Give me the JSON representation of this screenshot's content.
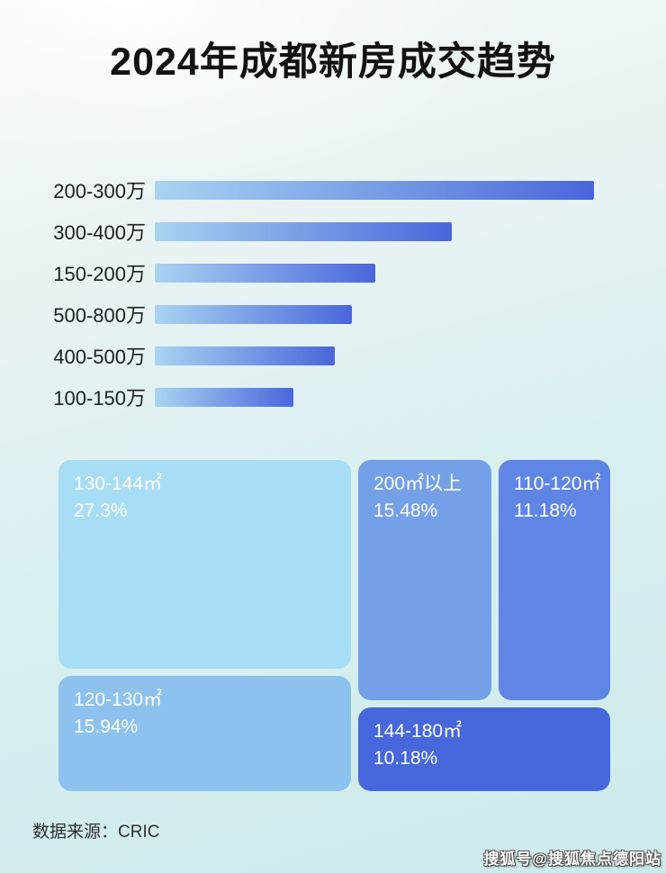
{
  "page": {
    "title": "2024年成都新房成交趋势",
    "source_note": "数据来源：CRIC",
    "watermark": "搜狐号@搜狐焦点德阳站"
  },
  "colors": {
    "bar_gradient_start": "#a9d4f1",
    "bar_gradient_end": "#4a66db",
    "background_top": "#f5f8f8",
    "background_bottom": "#cdeaea",
    "label_text": "#1f1f1f",
    "tile_text": "#ffffff"
  },
  "chart_data": [
    {
      "type": "bar",
      "orientation": "horizontal",
      "title": "",
      "categories": [
        "200-300万",
        "300-400万",
        "150-200万",
        "500-800万",
        "400-500万",
        "100-150万"
      ],
      "values": [
        100,
        67.6,
        50.3,
        44.9,
        41.0,
        31.5
      ],
      "value_note": "relative bar lengths, no numeric data labels shown",
      "grid": false,
      "legend": false
    },
    {
      "type": "treemap",
      "title": "",
      "tiles": [
        {
          "label": "130-144㎡",
          "percent": "27.3%",
          "value": 27.3,
          "color": "#a8ddf6"
        },
        {
          "label": "200㎡以上",
          "percent": "15.48%",
          "value": 15.48,
          "color": "#74a0e8"
        },
        {
          "label": "110-120㎡",
          "percent": "11.18%",
          "value": 11.18,
          "color": "#5f86e4"
        },
        {
          "label": "120-130㎡",
          "percent": "15.94%",
          "value": 15.94,
          "color": "#8dc2ee"
        },
        {
          "label": "144-180㎡",
          "percent": "10.18%",
          "value": 10.18,
          "color": "#4668dc"
        }
      ]
    }
  ]
}
